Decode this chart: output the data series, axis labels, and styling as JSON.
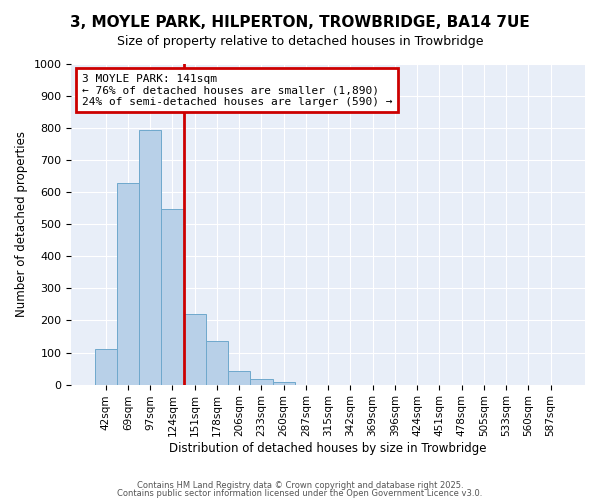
{
  "title": "3, MOYLE PARK, HILPERTON, TROWBRIDGE, BA14 7UE",
  "subtitle": "Size of property relative to detached houses in Trowbridge",
  "xlabel": "Distribution of detached houses by size in Trowbridge",
  "ylabel": "Number of detached properties",
  "bar_labels": [
    "42sqm",
    "69sqm",
    "97sqm",
    "124sqm",
    "151sqm",
    "178sqm",
    "206sqm",
    "233sqm",
    "260sqm",
    "287sqm",
    "315sqm",
    "342sqm",
    "369sqm",
    "396sqm",
    "424sqm",
    "451sqm",
    "478sqm",
    "505sqm",
    "533sqm",
    "560sqm",
    "587sqm"
  ],
  "bar_values": [
    110,
    630,
    795,
    548,
    220,
    135,
    42,
    18,
    8,
    0,
    0,
    0,
    0,
    0,
    0,
    0,
    0,
    0,
    0,
    0,
    0
  ],
  "bar_color": "#b8d0e8",
  "bar_edge_color": "#6fa8cc",
  "vline_x": 4,
  "vline_color": "#cc0000",
  "annotation_title": "3 MOYLE PARK: 141sqm",
  "annotation_line1": "← 76% of detached houses are smaller (1,890)",
  "annotation_line2": "24% of semi-detached houses are larger (590) →",
  "annotation_box_color": "#cc0000",
  "ylim": [
    0,
    1000
  ],
  "yticks": [
    0,
    100,
    200,
    300,
    400,
    500,
    600,
    700,
    800,
    900,
    1000
  ],
  "background_color": "#e8eef8",
  "footer1": "Contains HM Land Registry data © Crown copyright and database right 2025.",
  "footer2": "Contains public sector information licensed under the Open Government Licence v3.0."
}
